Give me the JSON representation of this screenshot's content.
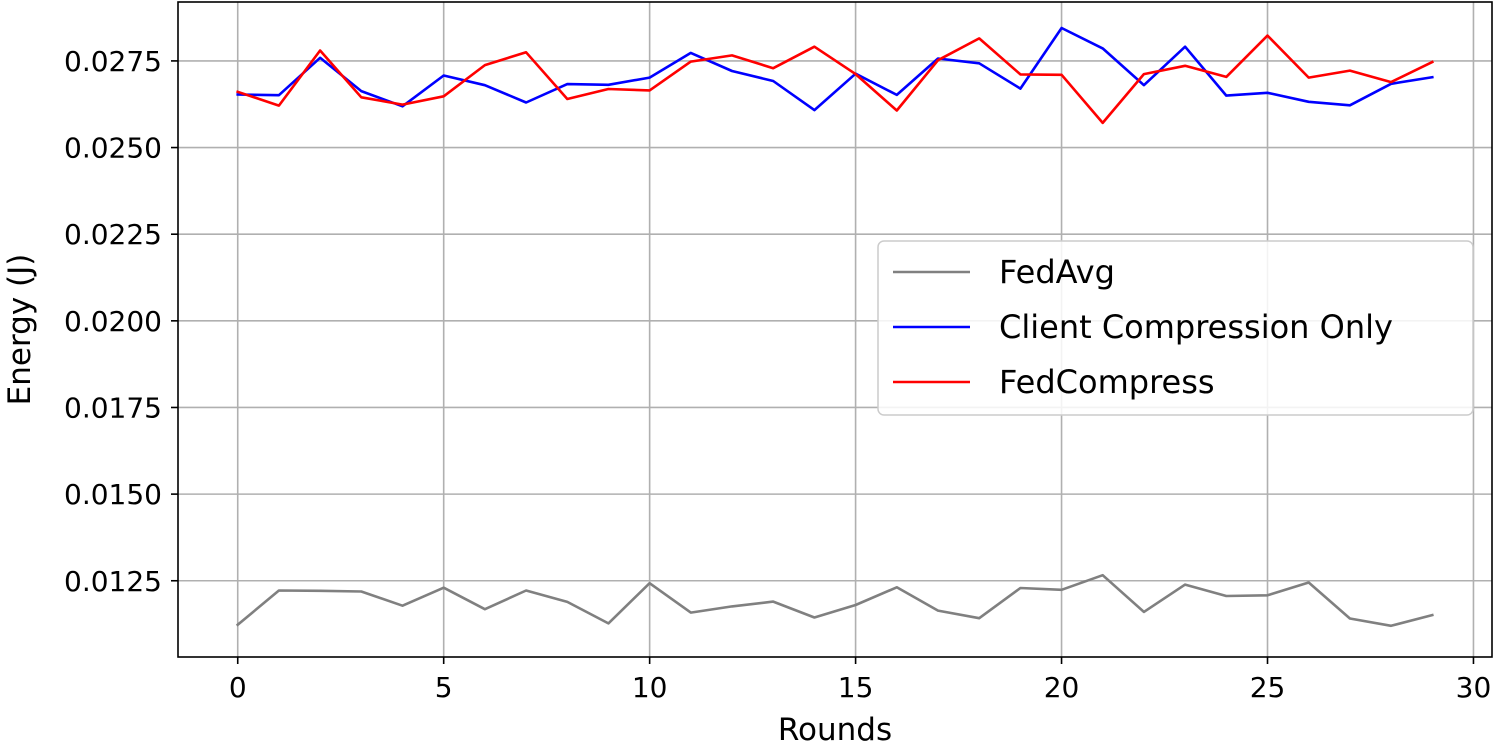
{
  "chart_data": {
    "type": "line",
    "title": "",
    "xlabel": "Rounds",
    "ylabel": "Energy (J)",
    "xlim": [
      -1.45,
      30.45
    ],
    "ylim": [
      0.0103,
      0.0292
    ],
    "xticks": [
      0,
      5,
      10,
      15,
      20,
      25,
      30
    ],
    "xtick_labels": [
      "0",
      "5",
      "10",
      "15",
      "20",
      "25",
      "30"
    ],
    "yticks": [
      0.0125,
      0.015,
      0.0175,
      0.02,
      0.0225,
      0.025,
      0.0275
    ],
    "ytick_labels": [
      "0.0125",
      "0.0150",
      "0.0175",
      "0.0200",
      "0.0225",
      "0.0250",
      "0.0275"
    ],
    "grid": true,
    "legend_position": "right",
    "x": [
      0,
      1,
      2,
      3,
      4,
      5,
      6,
      7,
      8,
      9,
      10,
      11,
      12,
      13,
      14,
      15,
      16,
      17,
      18,
      19,
      20,
      21,
      22,
      23,
      24,
      25,
      26,
      27,
      28,
      29
    ],
    "series": [
      {
        "name": "FedAvg",
        "color": "#808080",
        "values": [
          0.01123,
          0.01222,
          0.01221,
          0.01219,
          0.01178,
          0.0123,
          0.01168,
          0.01222,
          0.01189,
          0.01127,
          0.01243,
          0.01158,
          0.01176,
          0.0119,
          0.01144,
          0.0118,
          0.01231,
          0.01164,
          0.01142,
          0.01229,
          0.01224,
          0.01266,
          0.0116,
          0.01239,
          0.01206,
          0.01208,
          0.01245,
          0.01141,
          0.0112,
          0.01151
        ]
      },
      {
        "name": "Client Compression Only",
        "color": "#0000ff",
        "values": [
          0.02653,
          0.02651,
          0.02759,
          0.02663,
          0.02619,
          0.02708,
          0.0268,
          0.0263,
          0.02683,
          0.02681,
          0.02702,
          0.02773,
          0.02721,
          0.02692,
          0.02608,
          0.02713,
          0.02652,
          0.02757,
          0.02743,
          0.0267,
          0.02845,
          0.02786,
          0.0268,
          0.02791,
          0.0265,
          0.02658,
          0.02632,
          0.02622,
          0.02684,
          0.02703
        ]
      },
      {
        "name": "FedCompress",
        "color": "#ff0000",
        "values": [
          0.02661,
          0.02621,
          0.0278,
          0.02645,
          0.02624,
          0.02648,
          0.02738,
          0.02775,
          0.0264,
          0.02669,
          0.02665,
          0.02748,
          0.02766,
          0.02729,
          0.02791,
          0.02712,
          0.02607,
          0.02752,
          0.02815,
          0.02711,
          0.0271,
          0.02571,
          0.02712,
          0.02736,
          0.02704,
          0.02823,
          0.02702,
          0.02722,
          0.02689,
          0.02747
        ]
      }
    ]
  }
}
